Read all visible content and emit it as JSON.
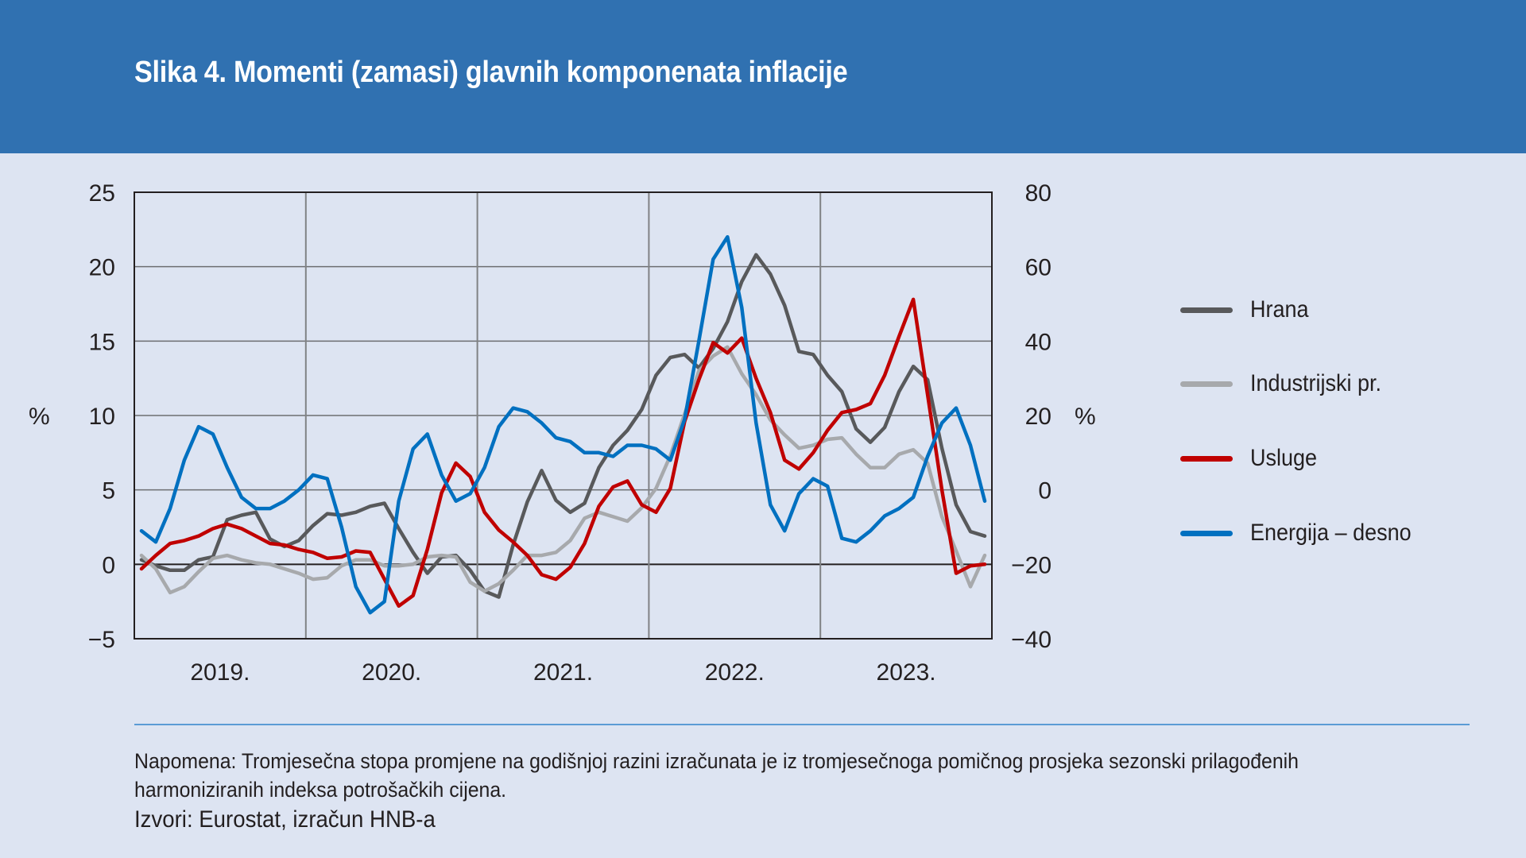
{
  "header": {
    "title": "Slika 4. Momenti (zamasi) glavnih komponenata inflacije"
  },
  "footer": {
    "note": "Napomena: Tromjesečna stopa promjene na godišnjoj razini izračunata je iz tromjesečnoga pomičnog prosjeka sezonski prilagođenih harmoniziranih indeksa potrošačkih cijena.",
    "source": "Izvori: Eurostat, izračun HNB-a"
  },
  "chart_data": {
    "type": "line",
    "title": "Slika 4. Momenti (zamasi) glavnih komponenata inflacije",
    "xlabel": "",
    "ylabel": "%",
    "ylabel_right": "%",
    "ylim": [
      -5,
      25
    ],
    "ylim_right": [
      -40,
      80
    ],
    "yticks": [
      "25",
      "20",
      "15",
      "10",
      "5",
      "0",
      "−5"
    ],
    "yticks_right": [
      "80",
      "60",
      "40",
      "20",
      "0",
      "−20",
      "−40"
    ],
    "ytick_values": [
      25,
      20,
      15,
      10,
      5,
      0,
      -5
    ],
    "ytick_values_right": [
      80,
      60,
      40,
      20,
      0,
      -20,
      -40
    ],
    "x_labels": [
      "2019.",
      "2020.",
      "2021.",
      "2022.",
      "2023."
    ],
    "x_frequency": "monthly, Jan 2019 – Dec 2023",
    "grid": true,
    "legend_position": "right",
    "colors": {
      "hrana": "#58595b",
      "industrijski": "#a7a9ac",
      "usluge": "#c00000",
      "energija": "#0070c0"
    },
    "series": [
      {
        "name": "Hrana",
        "key": "hrana",
        "axis": "left",
        "color": "#58595b",
        "values": [
          0.3,
          -0.1,
          -0.4,
          -0.4,
          0.3,
          0.5,
          3.0,
          3.3,
          3.5,
          1.7,
          1.2,
          1.6,
          2.6,
          3.4,
          3.3,
          3.5,
          3.9,
          4.1,
          2.4,
          0.8,
          -0.6,
          0.5,
          0.6,
          -0.4,
          -1.8,
          -2.2,
          1.3,
          4.2,
          6.3,
          4.3,
          3.5,
          4.1,
          6.5,
          8.0,
          9.0,
          10.4,
          12.7,
          13.9,
          14.1,
          13.2,
          14.5,
          16.3,
          19.0,
          20.8,
          19.5,
          17.4,
          14.3,
          14.1,
          12.7,
          11.6,
          9.1,
          8.2,
          9.2,
          11.6,
          13.3,
          12.4,
          7.8,
          4.0,
          2.2,
          1.9
        ]
      },
      {
        "name": "Industrijski pr.",
        "key": "industrijski",
        "axis": "left",
        "color": "#a7a9ac",
        "values": [
          0.6,
          -0.3,
          -1.9,
          -1.5,
          -0.5,
          0.4,
          0.6,
          0.3,
          0.1,
          0.0,
          -0.3,
          -0.6,
          -1.0,
          -0.9,
          -0.1,
          0.3,
          0.3,
          -0.1,
          -0.1,
          0.0,
          0.5,
          0.6,
          0.5,
          -1.2,
          -1.8,
          -1.3,
          -0.4,
          0.6,
          0.6,
          0.8,
          1.6,
          3.1,
          3.5,
          3.2,
          2.9,
          3.8,
          5.1,
          7.3,
          10.1,
          13.0,
          14.0,
          14.6,
          12.8,
          11.4,
          9.7,
          8.7,
          7.8,
          8.0,
          8.4,
          8.5,
          7.4,
          6.5,
          6.5,
          7.4,
          7.7,
          6.8,
          3.2,
          0.9,
          -1.5,
          0.6
        ]
      },
      {
        "name": "Usluge",
        "key": "usluge",
        "axis": "left",
        "color": "#c00000",
        "values": [
          -0.3,
          0.6,
          1.4,
          1.6,
          1.9,
          2.4,
          2.7,
          2.4,
          1.9,
          1.4,
          1.3,
          1.0,
          0.8,
          0.4,
          0.5,
          0.9,
          0.8,
          -1.0,
          -2.8,
          -2.1,
          1.0,
          4.8,
          6.8,
          5.9,
          3.5,
          2.3,
          1.5,
          0.6,
          -0.7,
          -1.0,
          -0.2,
          1.4,
          3.9,
          5.2,
          5.6,
          4.0,
          3.5,
          5.1,
          9.6,
          12.4,
          14.9,
          14.2,
          15.2,
          12.5,
          10.2,
          7.0,
          6.4,
          7.5,
          9.0,
          10.2,
          10.4,
          10.8,
          12.7,
          15.3,
          17.8,
          11.4,
          5.0,
          -0.6,
          -0.1,
          0.0
        ]
      },
      {
        "name": "Energija – desno",
        "key": "energija",
        "axis": "right",
        "color": "#0070c0",
        "values": [
          -11,
          -14,
          -5,
          8,
          17,
          15,
          6,
          -2,
          -5,
          -5,
          -3,
          0,
          4,
          3,
          -10,
          -26,
          -33,
          -30,
          -3,
          11,
          15,
          4,
          -3,
          -1,
          6,
          17,
          22,
          21,
          18,
          14,
          13,
          10,
          10,
          9,
          12,
          12,
          11,
          8,
          19,
          40,
          62,
          68,
          49,
          18,
          -4,
          -11,
          -1,
          3,
          1,
          -13,
          -14,
          -11,
          -7,
          -5,
          -2,
          9,
          18,
          22,
          12,
          -3
        ]
      }
    ]
  }
}
